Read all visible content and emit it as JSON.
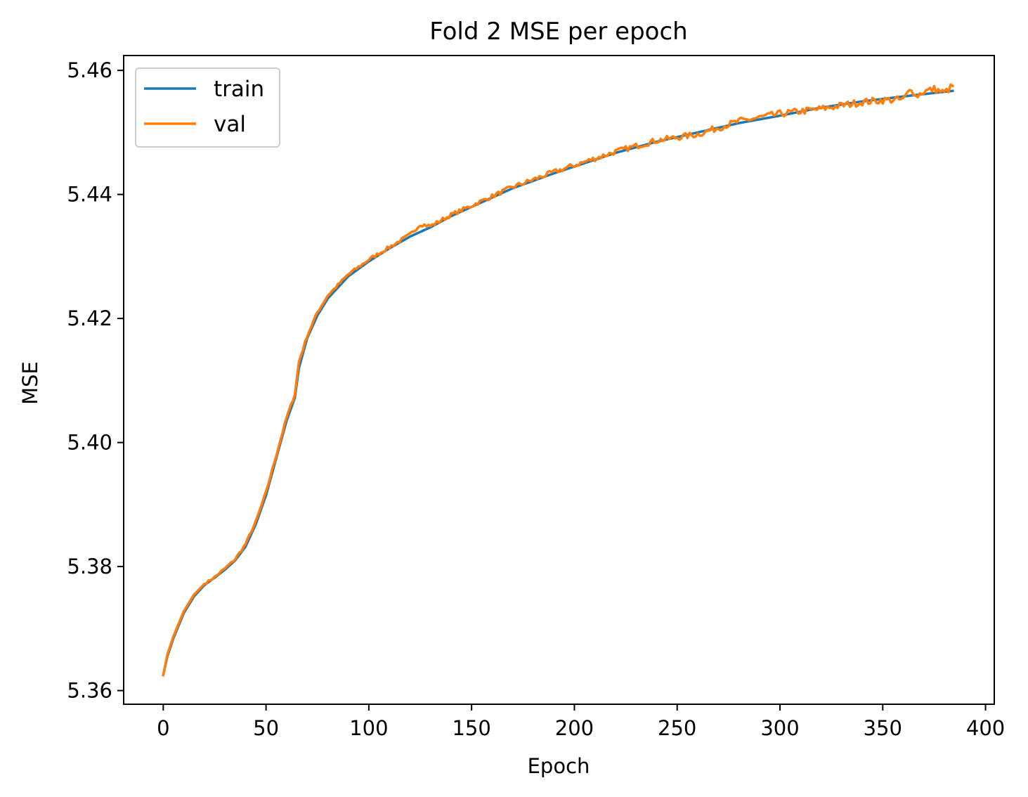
{
  "chart_data": {
    "type": "line",
    "title": "Fold 2 MSE per epoch",
    "xlabel": "Epoch",
    "ylabel": "MSE",
    "xlim": [
      -19.25,
      404.25
    ],
    "ylim": [
      5.3578,
      5.4624
    ],
    "xticks": [
      0,
      50,
      100,
      150,
      200,
      250,
      300,
      350,
      400
    ],
    "xtick_labels": [
      "0",
      "50",
      "100",
      "150",
      "200",
      "250",
      "300",
      "350",
      "400"
    ],
    "yticks": [
      5.36,
      5.38,
      5.4,
      5.42,
      5.44,
      5.46
    ],
    "ytick_labels": [
      "5.36",
      "5.38",
      "5.40",
      "5.42",
      "5.44",
      "5.46"
    ],
    "grid": false,
    "legend_position": "upper-left",
    "epochs": 385,
    "series": [
      {
        "name": "train",
        "color": "#1f77b4",
        "x": [
          0,
          2,
          5,
          10,
          15,
          20,
          25,
          30,
          35,
          40,
          45,
          50,
          55,
          60,
          64,
          66,
          70,
          75,
          80,
          85,
          90,
          100,
          110,
          120,
          130,
          140,
          150,
          160,
          170,
          180,
          190,
          200,
          220,
          240,
          260,
          280,
          300,
          320,
          340,
          360,
          384
        ],
        "y": [
          5.3625,
          5.3655,
          5.3685,
          5.3725,
          5.3752,
          5.377,
          5.3782,
          5.3795,
          5.381,
          5.3832,
          5.3868,
          5.3915,
          5.3975,
          5.4035,
          5.4072,
          5.412,
          5.4168,
          5.4205,
          5.4232,
          5.425,
          5.4268,
          5.4292,
          5.4313,
          5.4332,
          5.4347,
          5.4365,
          5.438,
          5.4395,
          5.441,
          5.4422,
          5.4434,
          5.4445,
          5.4467,
          5.4485,
          5.45,
          5.4515,
          5.4527,
          5.454,
          5.455,
          5.4558,
          5.4567
        ]
      },
      {
        "name": "val",
        "color": "#ff7f0e",
        "x": [
          0,
          2,
          5,
          10,
          15,
          20,
          25,
          30,
          35,
          40,
          43,
          45,
          50,
          55,
          60,
          64,
          66,
          70,
          75,
          80,
          85,
          90,
          100,
          110,
          120,
          125,
          130,
          140,
          150,
          160,
          170,
          180,
          190,
          200,
          220,
          240,
          260,
          280,
          300,
          320,
          340,
          350,
          360,
          364,
          366,
          370,
          375,
          380,
          384
        ],
        "y": [
          5.3625,
          5.3658,
          5.3688,
          5.3728,
          5.3755,
          5.3772,
          5.3783,
          5.3797,
          5.3812,
          5.3836,
          5.3858,
          5.3872,
          5.392,
          5.398,
          5.404,
          5.4078,
          5.413,
          5.4172,
          5.421,
          5.4237,
          5.4254,
          5.4271,
          5.4295,
          5.4315,
          5.4335,
          5.4352,
          5.4349,
          5.4367,
          5.4382,
          5.4397,
          5.4412,
          5.4424,
          5.4436,
          5.4447,
          5.4469,
          5.4487,
          5.4497,
          5.4518,
          5.453,
          5.4538,
          5.4549,
          5.4552,
          5.4553,
          5.4572,
          5.4558,
          5.4566,
          5.457,
          5.4564,
          5.4575
        ]
      }
    ]
  }
}
